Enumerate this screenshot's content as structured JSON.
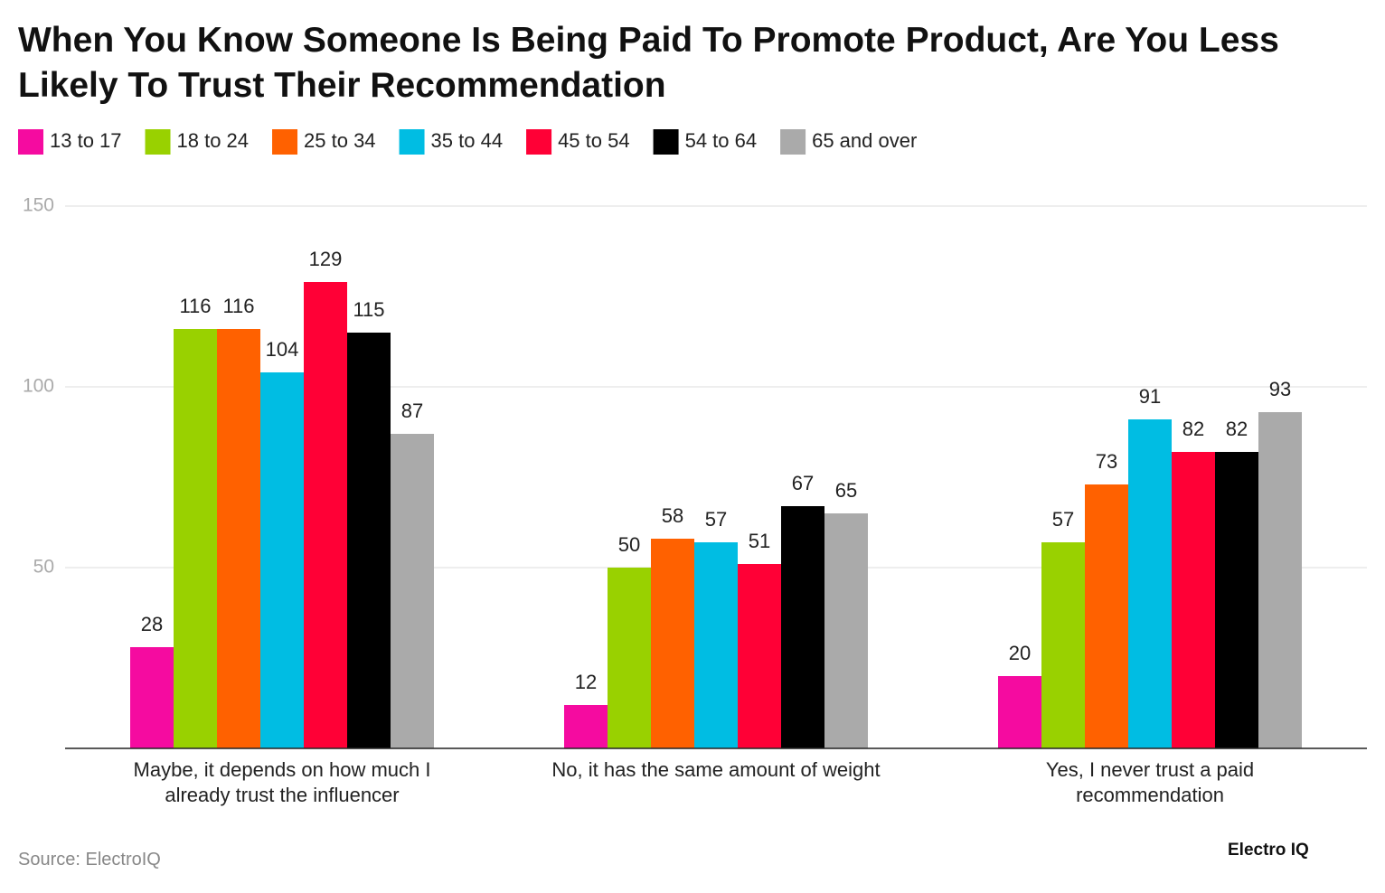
{
  "chart_data": {
    "type": "bar",
    "title": "When You Know Someone Is Being Paid To Promote Product, Are You Less Likely To Trust Their Recommendation",
    "categories": [
      "Maybe, it depends on how much I already trust the influencer",
      "No, it has the same amount of weight",
      "Yes, I never trust a paid recommendation"
    ],
    "series": [
      {
        "name": "13 to 17",
        "color": "#f50ba0",
        "values": [
          28,
          12,
          20
        ]
      },
      {
        "name": "18 to 24",
        "color": "#99d100",
        "values": [
          116,
          50,
          57
        ]
      },
      {
        "name": "25 to 34",
        "color": "#ff6100",
        "values": [
          116,
          58,
          73
        ]
      },
      {
        "name": "35 to 44",
        "color": "#00bde3",
        "values": [
          104,
          57,
          91
        ]
      },
      {
        "name": "45 to 54",
        "color": "#ff0036",
        "values": [
          129,
          51,
          82
        ]
      },
      {
        "name": "54 to 64",
        "color": "#000000",
        "values": [
          115,
          67,
          82
        ]
      },
      {
        "name": "65 and over",
        "color": "#aaaaaa",
        "values": [
          87,
          65,
          93
        ]
      }
    ],
    "ylim": [
      0,
      150
    ],
    "yticks": [
      50,
      100,
      150
    ],
    "grid": true,
    "source": "Source: ElectroIQ",
    "logo": "Electro IQ"
  }
}
